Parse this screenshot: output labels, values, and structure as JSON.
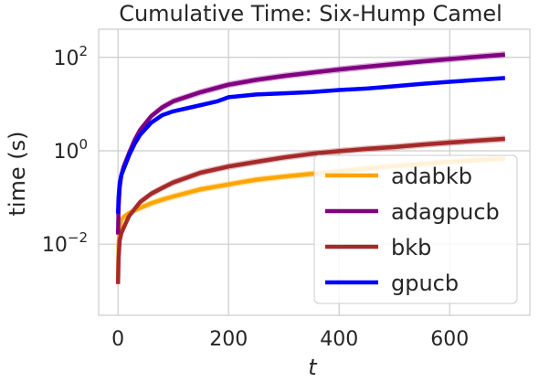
{
  "chart_data": {
    "type": "line",
    "title": "Cumulative Time: Six-Hump Camel",
    "xlabel": "t",
    "ylabel": "time (s)",
    "xlim": [
      -35,
      745
    ],
    "ylim": [
      0.0003,
      400
    ],
    "yscale": "log",
    "grid": true,
    "legend_position": "lower-right",
    "x_ticks": [
      0,
      200,
      400,
      600
    ],
    "x_tick_labels": [
      "0",
      "200",
      "400",
      "600"
    ],
    "y_ticks": [
      0.01,
      1,
      100
    ],
    "y_tick_labels": [
      {
        "base": "10",
        "exp": "−2"
      },
      {
        "base": "10",
        "exp": "0"
      },
      {
        "base": "10",
        "exp": "2"
      }
    ],
    "series": [
      {
        "name": "adabkb",
        "color": "#ffa500",
        "band": true,
        "x": [
          0,
          1,
          3,
          6,
          10,
          20,
          40,
          60,
          80,
          100,
          150,
          200,
          250,
          300,
          350,
          400,
          450,
          500,
          550,
          600,
          650,
          700
        ],
        "y": [
          0.0015,
          0.01,
          0.022,
          0.033,
          0.038,
          0.046,
          0.06,
          0.075,
          0.09,
          0.105,
          0.15,
          0.19,
          0.24,
          0.28,
          0.32,
          0.36,
          0.42,
          0.47,
          0.52,
          0.58,
          0.63,
          0.68
        ]
      },
      {
        "name": "adagpucb",
        "color": "#800080",
        "band": true,
        "x": [
          0,
          1,
          3,
          6,
          10,
          20,
          30,
          40,
          60,
          80,
          100,
          150,
          200,
          250,
          300,
          350,
          400,
          450,
          500,
          550,
          600,
          650,
          700
        ],
        "y": [
          0.016,
          0.06,
          0.16,
          0.3,
          0.45,
          0.9,
          1.7,
          2.8,
          5.5,
          8.5,
          11.5,
          18,
          26,
          33,
          40,
          47,
          55,
          63,
          72,
          82,
          92,
          103,
          115
        ]
      },
      {
        "name": "bkb",
        "color": "#a52a2a",
        "band": true,
        "x": [
          0,
          1,
          3,
          6,
          10,
          15,
          20,
          40,
          60,
          80,
          100,
          150,
          200,
          250,
          300,
          350,
          400,
          450,
          500,
          550,
          600,
          650,
          700
        ],
        "y": [
          0.0014,
          0.005,
          0.012,
          0.017,
          0.022,
          0.03,
          0.04,
          0.08,
          0.12,
          0.16,
          0.21,
          0.34,
          0.46,
          0.58,
          0.72,
          0.86,
          0.98,
          1.1,
          1.2,
          1.35,
          1.5,
          1.65,
          1.8
        ]
      },
      {
        "name": "gpucb",
        "color": "#0000ff",
        "band": false,
        "x": [
          0,
          1,
          3,
          6,
          10,
          20,
          30,
          40,
          60,
          80,
          100,
          150,
          180,
          200,
          250,
          300,
          350,
          400,
          450,
          500,
          550,
          600,
          650,
          700
        ],
        "y": [
          0.045,
          0.1,
          0.2,
          0.3,
          0.4,
          0.8,
          1.4,
          2.2,
          4,
          5.8,
          7,
          9.5,
          11.5,
          14,
          16,
          17,
          18,
          20,
          21.5,
          24,
          27,
          30,
          33,
          36
        ]
      }
    ],
    "legend": [
      "adabkb",
      "adagpucb",
      "bkb",
      "gpucb"
    ]
  }
}
